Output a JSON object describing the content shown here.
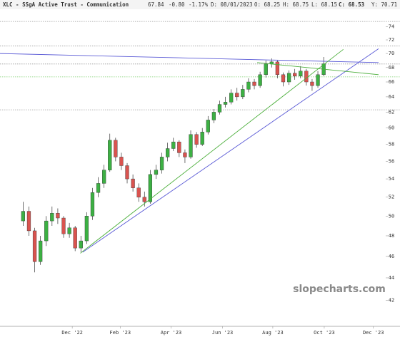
{
  "chart_data": {
    "type": "candlestick",
    "header": {
      "symbol": "XLC - SSgA Active Trust - Communication",
      "last": "67.84",
      "change": "-0.80",
      "change_pct": "-1.17%",
      "date": "D: 08/01/2023",
      "open": "O: 68.25",
      "high": "H: 68.75",
      "low": "L: 68.15",
      "close": "C: 68.53",
      "year": "Y: 70.71"
    },
    "watermark": "slopecharts.com",
    "up_color": "#3cb043",
    "down_color": "#d9534f",
    "log_y": true,
    "ylim": [
      39.8,
      78.2
    ],
    "yticks": [
      42,
      44,
      46,
      48,
      50,
      52,
      54,
      56,
      58,
      60,
      62,
      64,
      66,
      68,
      70,
      72,
      74
    ],
    "xlim": [
      -4,
      61.5
    ],
    "xticks": [
      {
        "value": 8.5,
        "label": "Dec '22"
      },
      {
        "value": 16.8,
        "label": "Feb '23"
      },
      {
        "value": 25.6,
        "label": "Apr '23"
      },
      {
        "value": 34.5,
        "label": "Jun '23"
      },
      {
        "value": 43.2,
        "label": "Aug '23"
      },
      {
        "value": 52.1,
        "label": "Oct '23"
      },
      {
        "value": 60.6,
        "label": "Dec '23"
      }
    ],
    "x": [
      0,
      1,
      2,
      3,
      4,
      5,
      6,
      7,
      8,
      9,
      10,
      11,
      12,
      13,
      14,
      15,
      16,
      17,
      18,
      19,
      20,
      21,
      22,
      23,
      24,
      25,
      26,
      27,
      28,
      29,
      30,
      31,
      32,
      33,
      34,
      35,
      36,
      37,
      38,
      39,
      40,
      41,
      42,
      43,
      44,
      45,
      46,
      47,
      48,
      49,
      50,
      51,
      52
    ],
    "open": [
      49.5,
      50.5,
      48.5,
      45.5,
      47.5,
      49.5,
      50.3,
      49.8,
      48.2,
      48.8,
      46.8,
      47.5,
      50.0,
      52.5,
      53.5,
      55.0,
      58.5,
      56.5,
      55.5,
      54.0,
      53.0,
      52.0,
      51.5,
      54.5,
      55.0,
      56.5,
      57.5,
      58.3,
      57.0,
      56.5,
      59.2,
      58.0,
      59.5,
      61.0,
      62.0,
      63.0,
      63.3,
      64.5,
      64.0,
      65.0,
      66.0,
      65.5,
      67.0,
      68.5,
      68.8,
      67.0,
      66.0,
      67.2,
      66.8,
      67.5,
      66.0,
      65.5,
      67.0
    ],
    "high": [
      51.5,
      51.0,
      48.8,
      48.0,
      50.0,
      51.0,
      50.8,
      50.0,
      49.3,
      49.0,
      48.0,
      50.4,
      53.0,
      54.2,
      55.6,
      59.3,
      58.8,
      57.0,
      55.8,
      54.5,
      53.5,
      52.6,
      55.0,
      55.6,
      57.0,
      58.2,
      58.8,
      58.5,
      57.4,
      59.7,
      59.5,
      60.0,
      61.5,
      62.4,
      63.5,
      64.0,
      65.0,
      65.2,
      65.6,
      66.5,
      66.4,
      67.4,
      69.0,
      69.3,
      69.0,
      67.3,
      67.6,
      67.8,
      68.2,
      67.8,
      66.4,
      67.5,
      69.5
    ],
    "low": [
      49.0,
      48.0,
      44.5,
      45.2,
      47.0,
      49.0,
      49.2,
      47.8,
      47.8,
      46.5,
      46.4,
      47.2,
      49.6,
      52.0,
      53.0,
      54.8,
      56.0,
      55.0,
      53.5,
      52.6,
      51.5,
      51.0,
      51.3,
      54.0,
      54.6,
      56.0,
      57.2,
      56.5,
      55.8,
      56.3,
      57.6,
      57.8,
      59.2,
      60.6,
      61.7,
      62.6,
      63.0,
      63.5,
      63.7,
      64.6,
      65.0,
      65.2,
      66.6,
      68.0,
      66.5,
      65.4,
      65.6,
      66.3,
      66.5,
      65.5,
      64.8,
      65.2,
      66.8
    ],
    "close": [
      50.5,
      48.5,
      45.5,
      47.5,
      49.5,
      50.3,
      49.8,
      48.2,
      48.8,
      46.8,
      47.5,
      50.0,
      52.5,
      53.5,
      55.0,
      58.5,
      56.5,
      55.5,
      54.0,
      53.0,
      52.0,
      51.5,
      54.5,
      55.0,
      56.5,
      57.5,
      58.3,
      57.0,
      56.5,
      59.2,
      58.0,
      59.5,
      61.0,
      62.0,
      63.0,
      63.3,
      64.5,
      64.0,
      65.0,
      66.0,
      65.5,
      67.0,
      68.5,
      68.8,
      67.0,
      66.0,
      67.2,
      66.8,
      67.5,
      66.0,
      65.5,
      67.0,
      68.53
    ],
    "trendlines": [
      {
        "color": "#5b5bd6",
        "x": [
          -4,
          61.5
        ],
        "y": [
          70.0,
          68.7
        ]
      },
      {
        "color": "#5b5bd6",
        "x": [
          10.3,
          61.5
        ],
        "y": [
          46.4,
          70.7
        ]
      },
      {
        "color": "#4caf3c",
        "x": [
          9.9,
          55.4
        ],
        "y": [
          46.3,
          70.6
        ]
      },
      {
        "color": "#4caf3c",
        "x": [
          40.5,
          61.5
        ],
        "y": [
          68.7,
          67.0
        ]
      }
    ],
    "hlines": [
      {
        "color": "#999999",
        "y": 74.8
      },
      {
        "color": "#999999",
        "y": 71.1
      },
      {
        "color": "#999999",
        "y": 68.5
      },
      {
        "color": "#999999",
        "y": 62.3
      },
      {
        "color": "#7ccf6c",
        "y": 66.7
      }
    ]
  }
}
